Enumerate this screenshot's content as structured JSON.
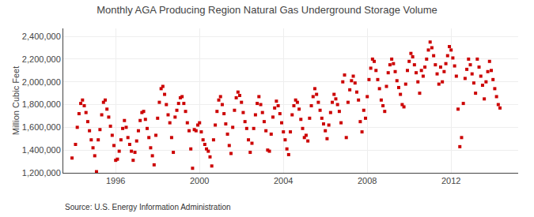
{
  "chart_data": {
    "type": "scatter",
    "title": "Monthly AGA Producing Region Natural Gas Underground Storage Volume",
    "ylabel": "Million Cubic Feet",
    "annotations": [
      "Source: U.S. Energy Information Administration"
    ],
    "color": "#cc0000",
    "marker": "square",
    "grid": true,
    "xlim": [
      1993.5,
      2015.2
    ],
    "xticks": [
      1996,
      2000,
      2004,
      2008,
      2012
    ],
    "ylim": [
      1200000,
      2470000
    ],
    "yticks": [
      {
        "value": 1200000,
        "label": "1,200,000"
      },
      {
        "value": 1400000,
        "label": "1,400,000"
      },
      {
        "value": 1600000,
        "label": "1,600,000"
      },
      {
        "value": 1800000,
        "label": "1,800,000"
      },
      {
        "value": 2000000,
        "label": "2,000,000"
      },
      {
        "value": 2200000,
        "label": "2,200,000"
      },
      {
        "value": 2400000,
        "label": "2,400,000"
      }
    ],
    "x": [
      1993.917,
      1994.083,
      1994.167,
      1994.25,
      1994.333,
      1994.417,
      1994.5,
      1994.583,
      1994.667,
      1994.75,
      1994.833,
      1994.917,
      1995.0,
      1995.083,
      1995.167,
      1995.25,
      1995.333,
      1995.417,
      1995.5,
      1995.583,
      1995.667,
      1995.75,
      1995.833,
      1995.917,
      1996.0,
      1996.083,
      1996.167,
      1996.25,
      1996.333,
      1996.417,
      1996.5,
      1996.583,
      1996.667,
      1996.75,
      1996.833,
      1996.917,
      1997.0,
      1997.083,
      1997.167,
      1997.25,
      1997.333,
      1997.417,
      1997.5,
      1997.583,
      1997.667,
      1997.75,
      1997.833,
      1997.917,
      1998.0,
      1998.083,
      1998.167,
      1998.25,
      1998.333,
      1998.417,
      1998.5,
      1998.583,
      1998.667,
      1998.75,
      1998.833,
      1998.917,
      1999.0,
      1999.083,
      1999.167,
      1999.25,
      1999.333,
      1999.417,
      1999.5,
      1999.583,
      1999.667,
      1999.75,
      1999.833,
      1999.917,
      2000.0,
      2000.083,
      2000.167,
      2000.25,
      2000.333,
      2000.417,
      2000.5,
      2000.583,
      2000.667,
      2000.75,
      2000.833,
      2000.917,
      2001.0,
      2001.083,
      2001.167,
      2001.25,
      2001.333,
      2001.417,
      2001.5,
      2001.583,
      2001.667,
      2001.75,
      2001.833,
      2001.917,
      2002.0,
      2002.083,
      2002.167,
      2002.25,
      2002.333,
      2002.417,
      2002.5,
      2002.583,
      2002.667,
      2002.75,
      2002.833,
      2002.917,
      2003.0,
      2003.083,
      2003.167,
      2003.25,
      2003.333,
      2003.417,
      2003.5,
      2003.583,
      2003.667,
      2003.75,
      2003.833,
      2003.917,
      2004.0,
      2004.083,
      2004.167,
      2004.25,
      2004.333,
      2004.417,
      2004.5,
      2004.583,
      2004.667,
      2004.75,
      2004.833,
      2004.917,
      2005.0,
      2005.083,
      2005.167,
      2005.25,
      2005.333,
      2005.417,
      2005.5,
      2005.583,
      2005.667,
      2005.75,
      2005.833,
      2005.917,
      2006.0,
      2006.083,
      2006.167,
      2006.25,
      2006.333,
      2006.417,
      2006.5,
      2006.583,
      2006.667,
      2006.75,
      2006.833,
      2006.917,
      2007.0,
      2007.083,
      2007.167,
      2007.25,
      2007.333,
      2007.417,
      2007.5,
      2007.583,
      2007.667,
      2007.75,
      2007.833,
      2007.917,
      2008.0,
      2008.083,
      2008.167,
      2008.25,
      2008.333,
      2008.417,
      2008.5,
      2008.583,
      2008.667,
      2008.75,
      2008.833,
      2008.917,
      2009.0,
      2009.083,
      2009.167,
      2009.25,
      2009.333,
      2009.417,
      2009.5,
      2009.583,
      2009.667,
      2009.75,
      2009.833,
      2009.917,
      2010.0,
      2010.083,
      2010.167,
      2010.25,
      2010.333,
      2010.417,
      2010.5,
      2010.583,
      2010.667,
      2010.75,
      2010.833,
      2010.917,
      2011.0,
      2011.083,
      2011.167,
      2011.25,
      2011.333,
      2011.417,
      2011.5,
      2011.583,
      2011.667,
      2011.75,
      2011.833,
      2011.917,
      2012.0,
      2012.083,
      2012.167,
      2012.25,
      2012.333,
      2012.417,
      2012.5,
      2012.583,
      2012.667,
      2012.75,
      2012.833,
      2012.917,
      2013.0,
      2013.083,
      2013.167,
      2013.25,
      2013.333,
      2013.417,
      2013.5,
      2013.583,
      2013.667,
      2013.75,
      2013.833,
      2013.917,
      2014.0,
      2014.083,
      2014.167,
      2014.25,
      2014.333
    ],
    "values": [
      1330000,
      1450000,
      1600000,
      1720000,
      1810000,
      1840000,
      1790000,
      1730000,
      1650000,
      1570000,
      1490000,
      1420000,
      1350000,
      1210000,
      1490000,
      1580000,
      1710000,
      1820000,
      1840000,
      1760000,
      1690000,
      1610000,
      1530000,
      1440000,
      1310000,
      1320000,
      1390000,
      1490000,
      1590000,
      1660000,
      1600000,
      1510000,
      1450000,
      1390000,
      1310000,
      1380000,
      1480000,
      1570000,
      1660000,
      1730000,
      1740000,
      1670000,
      1590000,
      1510000,
      1420000,
      1350000,
      1270000,
      1530000,
      1680000,
      1820000,
      1940000,
      1960000,
      1890000,
      1800000,
      1710000,
      1640000,
      1510000,
      1380000,
      1690000,
      1750000,
      1810000,
      1860000,
      1870000,
      1810000,
      1740000,
      1640000,
      1570000,
      1410000,
      1240000,
      1580000,
      1570000,
      1620000,
      1640000,
      1560000,
      1490000,
      1450000,
      1410000,
      1390000,
      1340000,
      1260000,
      1490000,
      1620000,
      1740000,
      1840000,
      1870000,
      1800000,
      1720000,
      1630000,
      1540000,
      1440000,
      1370000,
      1600000,
      1750000,
      1860000,
      1910000,
      1880000,
      1820000,
      1730000,
      1650000,
      1590000,
      1490000,
      1380000,
      1460000,
      1590000,
      1710000,
      1810000,
      1870000,
      1800000,
      1730000,
      1650000,
      1570000,
      1400000,
      1390000,
      1540000,
      1690000,
      1770000,
      1830000,
      1790000,
      1720000,
      1640000,
      1560000,
      1490000,
      1410000,
      1360000,
      1560000,
      1710000,
      1790000,
      1840000,
      1820000,
      1760000,
      1670000,
      1590000,
      1510000,
      1530000,
      1480000,
      1680000,
      1790000,
      1870000,
      1940000,
      1890000,
      1820000,
      1750000,
      1680000,
      1630000,
      1570000,
      1500000,
      1620000,
      1730000,
      1820000,
      1890000,
      1850000,
      1800000,
      1740000,
      1640000,
      2000000,
      2060000,
      1510000,
      1820000,
      1930000,
      2010000,
      2050000,
      1990000,
      1910000,
      1840000,
      1650000,
      1560000,
      1750000,
      1680000,
      1870000,
      2020000,
      2120000,
      2200000,
      2180000,
      2100000,
      2020000,
      1940000,
      1840000,
      1790000,
      1740000,
      1960000,
      2080000,
      2150000,
      2200000,
      2160000,
      2090000,
      2010000,
      1950000,
      1890000,
      1800000,
      1780000,
      1980000,
      2100000,
      2180000,
      2250000,
      2220000,
      2150000,
      2080000,
      2000000,
      1900000,
      2100000,
      2050000,
      2130000,
      2200000,
      2280000,
      2350000,
      2300000,
      2230000,
      2150000,
      2070000,
      1980000,
      2130000,
      2000000,
      2090000,
      2160000,
      2230000,
      2310000,
      2280000,
      2210000,
      2140000,
      2050000,
      1760000,
      1430000,
      1510000,
      1810000,
      2030000,
      2110000,
      2200000,
      2150000,
      2070000,
      1990000,
      1900000,
      2200000,
      2130000,
      2050000,
      1970000,
      1850000,
      2000000,
      2090000,
      2180000,
      2100000,
      2020000,
      1940000,
      1870000,
      1800000,
      1770000
    ]
  }
}
